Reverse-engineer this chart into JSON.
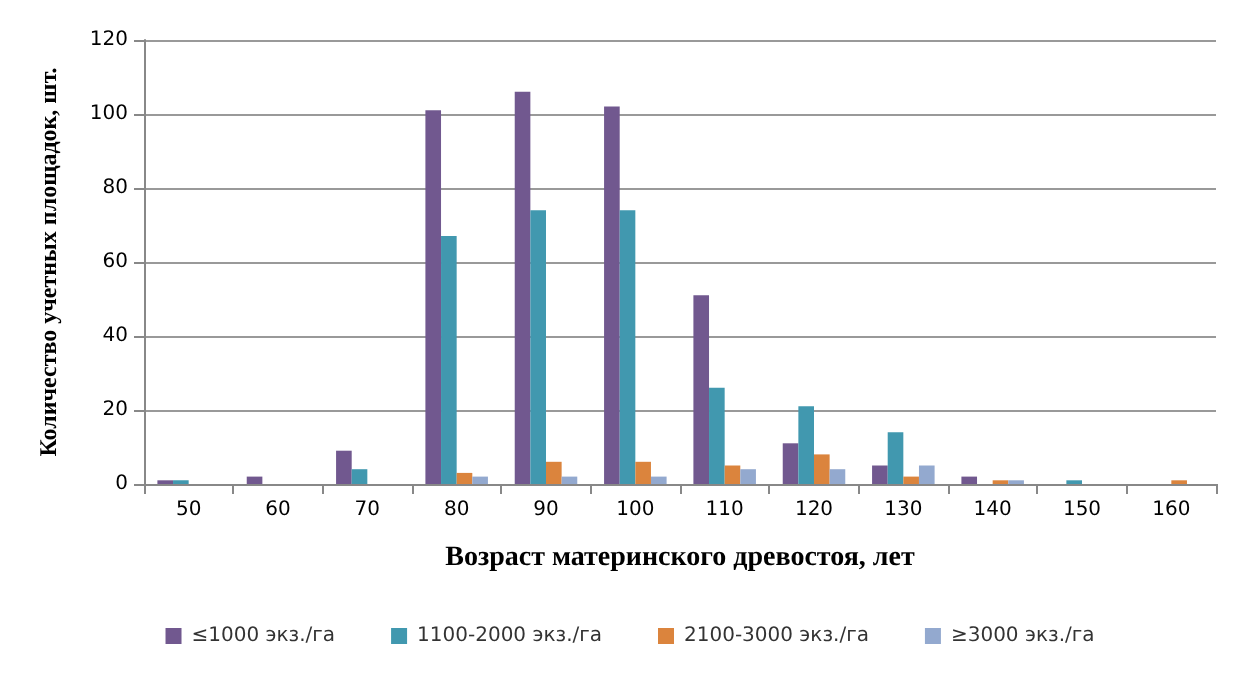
{
  "chart_data": {
    "type": "bar",
    "xlabel": "Возраст материнского древостоя, лет",
    "ylabel": "Количество учетных площадок, шт.",
    "categories": [
      "50",
      "60",
      "70",
      "80",
      "90",
      "100",
      "110",
      "120",
      "130",
      "140",
      "150",
      "160"
    ],
    "series": [
      {
        "name": "≤1000 экз./га",
        "color": "#71588f",
        "values": [
          1,
          2,
          9,
          101,
          106,
          102,
          51,
          11,
          5,
          2,
          0,
          0
        ]
      },
      {
        "name": "1100-2000 экз./га",
        "color": "#4198af",
        "values": [
          1,
          0,
          4,
          67,
          74,
          74,
          26,
          21,
          14,
          0,
          1,
          0
        ]
      },
      {
        "name": "2100-3000 экз./га",
        "color": "#db843d",
        "values": [
          0,
          0,
          0,
          3,
          6,
          6,
          5,
          8,
          2,
          1,
          0,
          1
        ]
      },
      {
        "name": "≥3000 экз./га",
        "color": "#93a9cf",
        "values": [
          0,
          0,
          0,
          2,
          2,
          2,
          4,
          4,
          5,
          1,
          0,
          0
        ]
      }
    ],
    "ylim": [
      0,
      120
    ],
    "yticks": [
      0,
      20,
      40,
      60,
      80,
      100,
      120
    ],
    "grid": "y",
    "legend": "bottom"
  }
}
